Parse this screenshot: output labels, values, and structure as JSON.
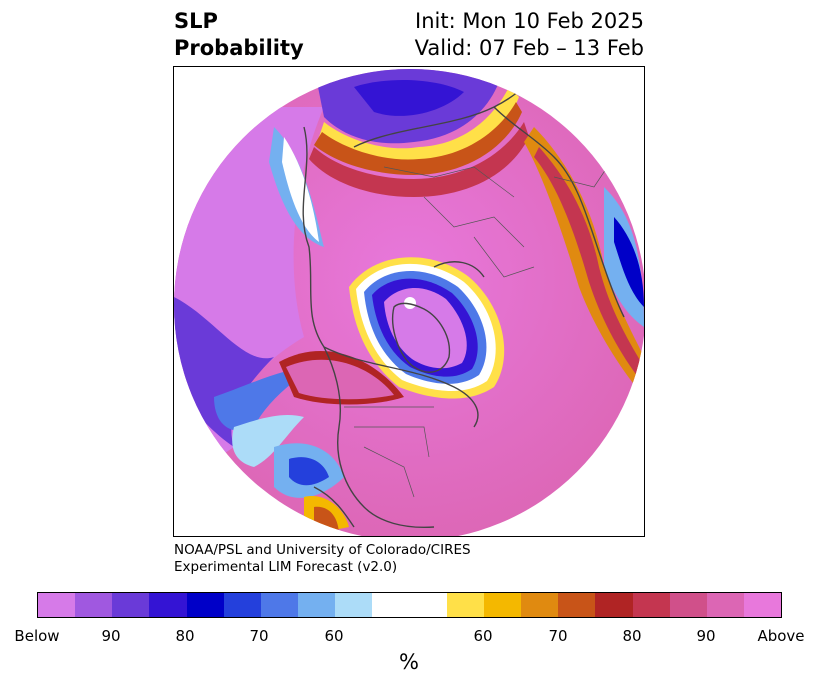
{
  "title": {
    "variable_line1": "SLP",
    "variable_line2": "Probability",
    "init": "Init: Mon 10 Feb 2025",
    "valid": "Valid: 07 Feb – 13 Feb"
  },
  "credit": {
    "line1": "NOAA/PSL and University of Colorado/CIRES",
    "line2": "Experimental LIM Forecast (v2.0)"
  },
  "colorbar": {
    "colors": [
      "#d67ae8",
      "#a058e0",
      "#6a3ad8",
      "#3414d4",
      "#0000c8",
      "#2440dc",
      "#4e78e8",
      "#74b0f0",
      "#acdcf8",
      "#ffffff",
      "#ffffff",
      "#ffe048",
      "#f4b800",
      "#e08a10",
      "#c85418",
      "#b02424",
      "#c43650",
      "#d0508a",
      "#dc66b4",
      "#e878dc"
    ],
    "tick_labels": [
      "Below",
      "90",
      "80",
      "70",
      "60",
      "60",
      "70",
      "80",
      "90",
      "Above"
    ],
    "unit": "%"
  },
  "map": {
    "projection": "north-polar-stereographic",
    "palette": {
      "above_strong": "#e878dc",
      "above_mid": "#dc66b4",
      "above_low": "#c43650",
      "below_strong": "#d67ae8",
      "below_mid": "#6a3ad8",
      "below_deep": "#3414d4",
      "coast": "#444444"
    }
  }
}
